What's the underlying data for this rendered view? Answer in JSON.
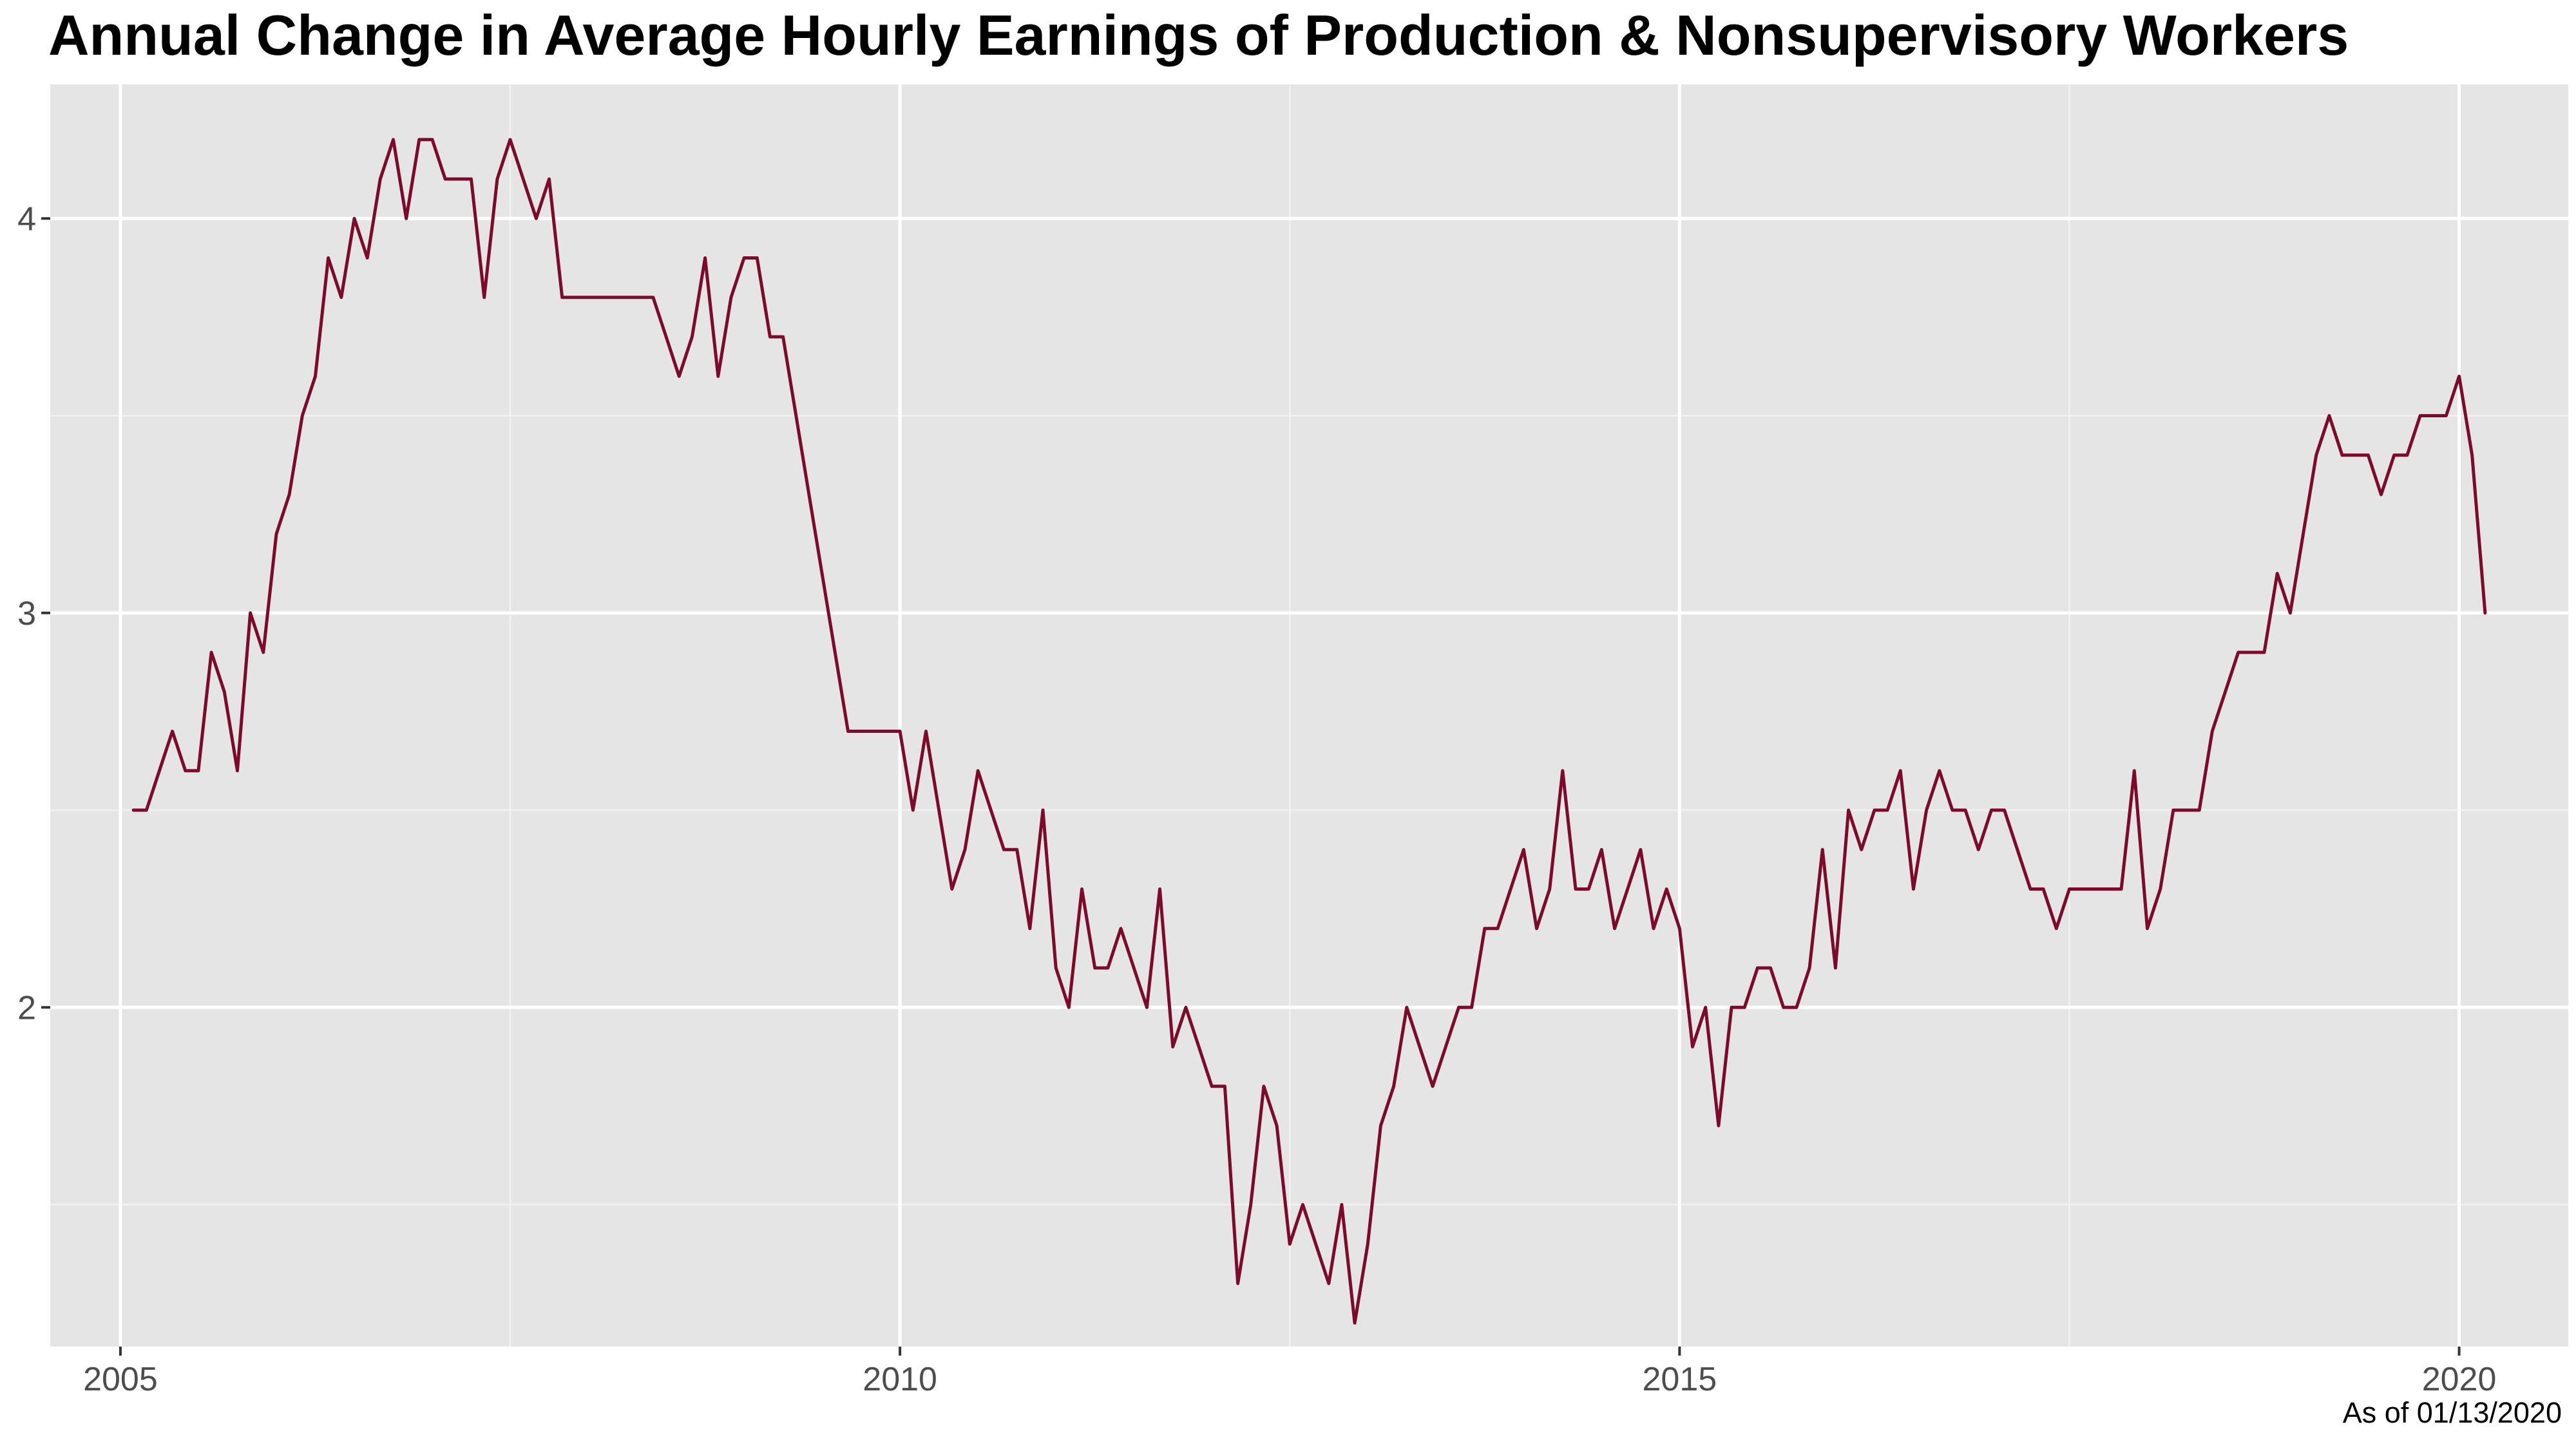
{
  "chart_data": {
    "type": "line",
    "title": "Annual Change in Average Hourly Earnings of Production & Nonsupervisory Workers",
    "xlabel": "",
    "ylabel": "",
    "caption": "As of 01/13/2020",
    "xlim": [
      2004.55,
      2020.7
    ],
    "ylim": [
      1.14,
      4.34
    ],
    "x_ticks": [
      2005,
      2010,
      2015,
      2020
    ],
    "x_minor_ticks": [
      2007.5,
      2012.5,
      2017.5
    ],
    "y_ticks": [
      2,
      3,
      4
    ],
    "y_minor_ticks": [
      1.5,
      2.5,
      3.5
    ],
    "grid": true,
    "background": "#e5e5e5",
    "line_color": "#7b0a2c",
    "start": "2005-02",
    "frequency": "monthly",
    "values": [
      2.5,
      2.5,
      2.6,
      2.7,
      2.6,
      2.6,
      2.9,
      2.8,
      2.6,
      3.0,
      2.9,
      3.2,
      3.3,
      3.5,
      3.6,
      3.9,
      3.8,
      4.0,
      3.9,
      4.1,
      4.2,
      4.0,
      4.2,
      4.2,
      4.1,
      4.1,
      4.1,
      3.8,
      4.1,
      4.2,
      4.1,
      4.0,
      4.1,
      3.8,
      3.8,
      3.8,
      3.8,
      3.8,
      3.8,
      3.8,
      3.8,
      3.7,
      3.6,
      3.7,
      3.9,
      3.6,
      3.8,
      3.9,
      3.9,
      3.7,
      3.7,
      3.5,
      3.3,
      3.1,
      2.9,
      2.7,
      2.7,
      2.7,
      2.7,
      2.7,
      2.5,
      2.7,
      2.5,
      2.3,
      2.4,
      2.6,
      2.5,
      2.4,
      2.4,
      2.2,
      2.5,
      2.1,
      2.0,
      2.3,
      2.1,
      2.1,
      2.2,
      2.1,
      2.0,
      2.3,
      1.9,
      2.0,
      1.9,
      1.8,
      1.8,
      1.3,
      1.5,
      1.8,
      1.7,
      1.4,
      1.5,
      1.4,
      1.3,
      1.5,
      1.2,
      1.4,
      1.7,
      1.8,
      2.0,
      1.9,
      1.8,
      1.9,
      2.0,
      2.0,
      2.2,
      2.2,
      2.3,
      2.4,
      2.2,
      2.3,
      2.6,
      2.3,
      2.3,
      2.4,
      2.2,
      2.3,
      2.4,
      2.2,
      2.3,
      2.2,
      1.9,
      2.0,
      1.7,
      2.0,
      2.0,
      2.1,
      2.1,
      2.0,
      2.0,
      2.1,
      2.4,
      2.1,
      2.5,
      2.4,
      2.5,
      2.5,
      2.6,
      2.3,
      2.5,
      2.6,
      2.5,
      2.5,
      2.4,
      2.5,
      2.5,
      2.4,
      2.3,
      2.3,
      2.2,
      2.3,
      2.3,
      2.3,
      2.3,
      2.3,
      2.6,
      2.2,
      2.3,
      2.5,
      2.5,
      2.5,
      2.7,
      2.8,
      2.9,
      2.9,
      2.9,
      3.1,
      3.0,
      3.2,
      3.4,
      3.5,
      3.4,
      3.4,
      3.4,
      3.3,
      3.4,
      3.4,
      3.5,
      3.5,
      3.5,
      3.6,
      3.4,
      3.0
    ]
  }
}
